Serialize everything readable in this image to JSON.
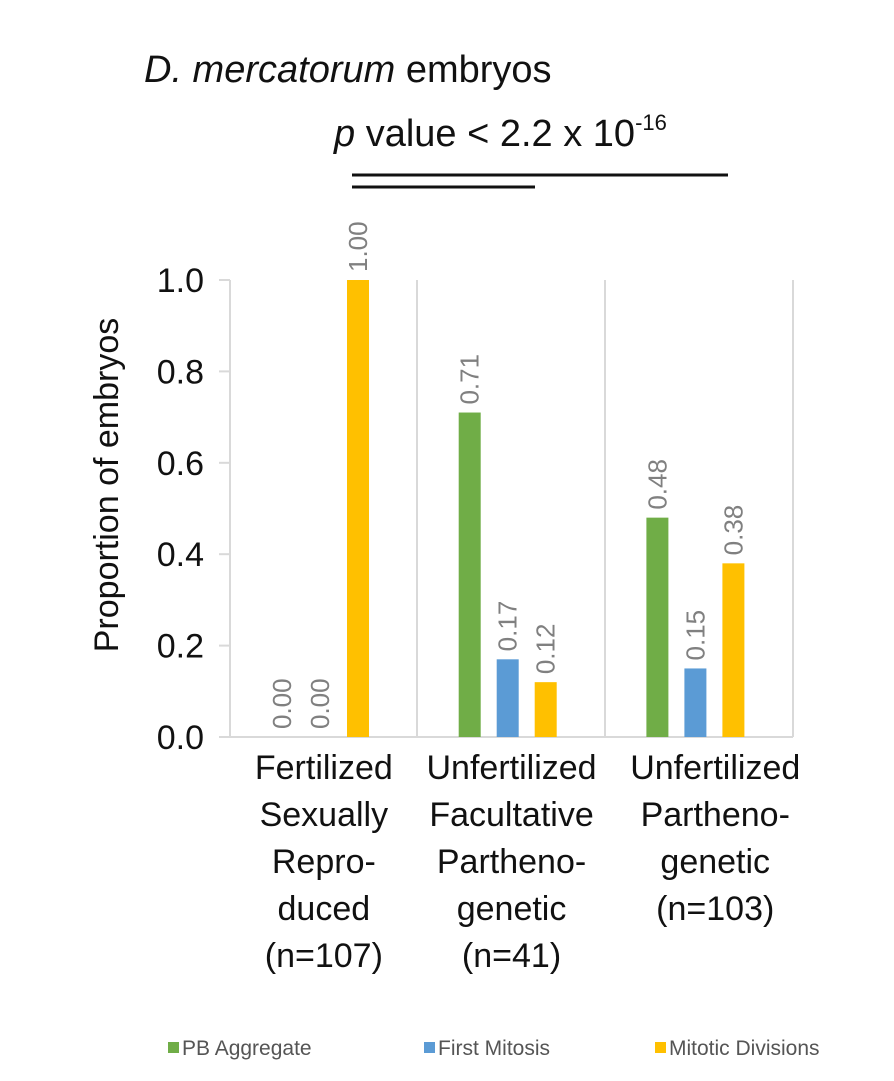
{
  "title": {
    "species": "D. mercatorum",
    "rest": " embryos"
  },
  "pvalue": {
    "p": "p",
    "text": " value < 2.2 x 10",
    "exponent": "-16"
  },
  "chart_data": {
    "type": "bar",
    "title": "D. mercatorum embryos",
    "xlabel": "",
    "ylabel": "Proportion of embryos",
    "ylim": [
      0,
      1.0
    ],
    "yticks": [
      "0.0",
      "0.2",
      "0.4",
      "0.6",
      "0.8",
      "1.0"
    ],
    "grid": "vertical separators between groups",
    "legend_position": "bottom",
    "categories": [
      [
        "Fertilized",
        "Sexually",
        "Repro-",
        "duced",
        "(n=107)"
      ],
      [
        "Unfertilized",
        "Facultative",
        "Partheno-",
        "genetic",
        "(n=41)"
      ],
      [
        "Unfertilized",
        "Partheno-",
        "genetic",
        "(n=103)"
      ]
    ],
    "series": [
      {
        "name": "PB Aggregate",
        "color": "#70ad47",
        "values": [
          0.0,
          0.71,
          0.48
        ],
        "labels": [
          "0.00",
          "0.71",
          "0.48"
        ]
      },
      {
        "name": "First Mitosis",
        "color": "#5b9bd5",
        "values": [
          0.0,
          0.17,
          0.15
        ],
        "labels": [
          "0.00",
          "0.17",
          "0.15"
        ]
      },
      {
        "name": "Mitotic Divisions",
        "color": "#ffc000",
        "values": [
          1.0,
          0.12,
          0.38
        ],
        "labels": [
          "1.00",
          "0.12",
          "0.38"
        ]
      }
    ],
    "annotations": [
      "p value < 2.2 x 10-16"
    ]
  }
}
